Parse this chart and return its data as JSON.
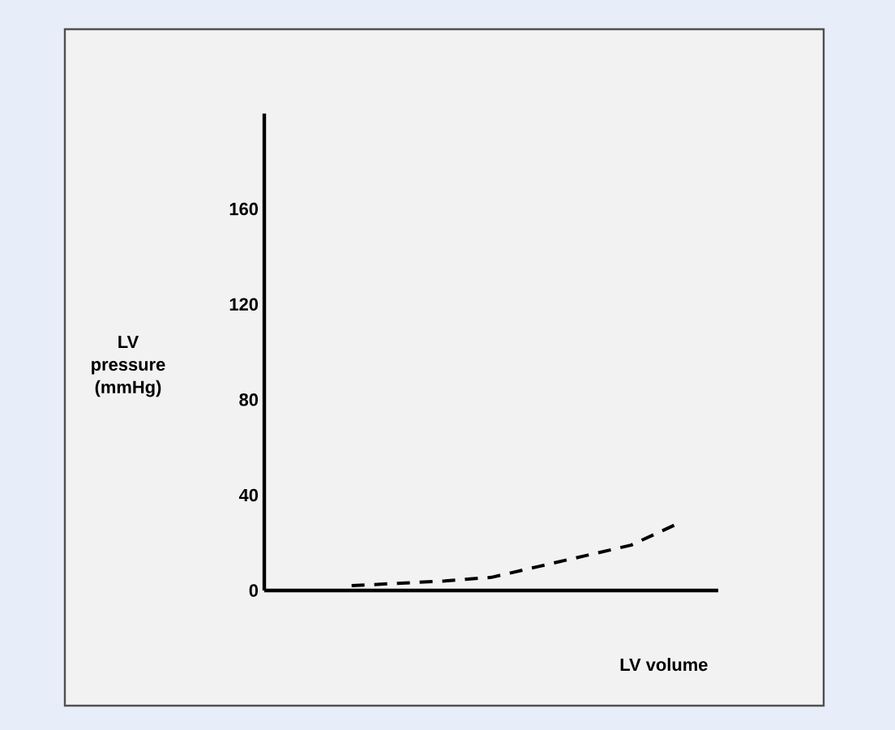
{
  "chart_data": {
    "type": "line",
    "xlabel": "LV volume",
    "ylabel": "LV pressure (mmHg)",
    "categories": [
      null,
      null,
      null,
      null,
      null,
      null,
      null,
      null
    ],
    "series": [
      {
        "color": "#000000",
        "line_style": "dashed",
        "values": [
          2,
          3,
          4,
          5.5,
          10,
          14.5,
          19,
          28
        ]
      }
    ],
    "ylim": [
      0,
      200
    ],
    "yticks": [
      0,
      40,
      80,
      120,
      160
    ],
    "tick_labels": "y",
    "grid": false,
    "marker": "none"
  }
}
